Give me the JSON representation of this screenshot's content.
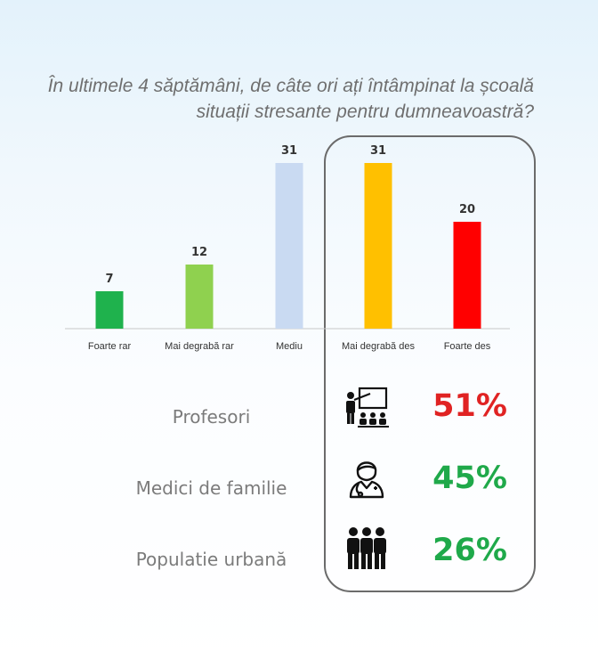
{
  "title": "În ultimele 4 săptămâni, de câte ori ați întâmpinat la școală situații stresante pentru dumneavoastră?",
  "chart_data": {
    "type": "bar",
    "categories": [
      "Foarte rar",
      "Mai degrabă rar",
      "Mediu",
      "Mai degrabă des",
      "Foarte des"
    ],
    "values": [
      7,
      12,
      31,
      31,
      20
    ],
    "colors": [
      "#1fb24d",
      "#8fd14f",
      "#c9daf2",
      "#ffc000",
      "#ff0000"
    ],
    "ylim": [
      0,
      31
    ],
    "grid": false,
    "legend": "none"
  },
  "stats": [
    {
      "label": "Profesori",
      "value": "51%",
      "color": "#e02323",
      "icon": "teacher-classroom-icon"
    },
    {
      "label": "Medici de familie",
      "value": "45%",
      "color": "#1fa94a",
      "icon": "female-doctor-icon"
    },
    {
      "label": "Populatie urbană",
      "value": "26%",
      "color": "#1fa94a",
      "icon": "group-of-people-icon"
    }
  ]
}
